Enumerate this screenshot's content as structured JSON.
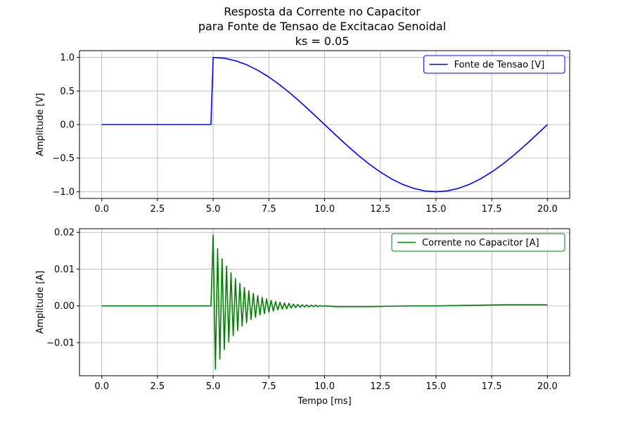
{
  "figure": {
    "title_lines": [
      "Resposta da Corrente no Capacitor",
      "para Fonte de Tensao de Excitacao Senoidal",
      "ks = 0.05"
    ]
  },
  "chart_data": [
    {
      "type": "line",
      "title": "",
      "xlabel": "",
      "ylabel": "Amplitude [V]",
      "xlim": [
        -1.0,
        21.0
      ],
      "ylim": [
        -1.1,
        1.1
      ],
      "xticks": [
        0.0,
        2.5,
        5.0,
        7.5,
        10.0,
        12.5,
        15.0,
        17.5,
        20.0
      ],
      "xtick_labels": [
        "0.0",
        "2.5",
        "5.0",
        "7.5",
        "10.0",
        "12.5",
        "15.0",
        "17.5",
        "20.0"
      ],
      "yticks": [
        -1.0,
        -0.5,
        0.0,
        0.5,
        1.0
      ],
      "ytick_labels": [
        "−1.0",
        "−0.5",
        "0.0",
        "0.5",
        "1.0"
      ],
      "grid": true,
      "legend_position": "top-right",
      "series": [
        {
          "name": "Fonte de Tensao [V]",
          "color": "#0000ff",
          "x": [
            0.0,
            4.9,
            5.0,
            5.5,
            6.0,
            6.5,
            7.0,
            7.5,
            8.0,
            8.5,
            9.0,
            9.5,
            10.0,
            10.5,
            11.0,
            11.5,
            12.0,
            12.5,
            13.0,
            13.5,
            14.0,
            14.5,
            15.0,
            15.5,
            16.0,
            16.5,
            17.0,
            17.5,
            18.0,
            18.5,
            19.0,
            19.5,
            20.0
          ],
          "y": [
            0.0,
            0.0,
            1.0,
            0.988,
            0.951,
            0.891,
            0.809,
            0.707,
            0.588,
            0.454,
            0.309,
            0.156,
            0.0,
            -0.156,
            -0.309,
            -0.454,
            -0.588,
            -0.707,
            -0.809,
            -0.891,
            -0.951,
            -0.988,
            -1.0,
            -0.988,
            -0.951,
            -0.891,
            -0.809,
            -0.707,
            -0.588,
            -0.454,
            -0.309,
            -0.156,
            0.0
          ]
        }
      ]
    },
    {
      "type": "line",
      "title": "",
      "xlabel": "Tempo [ms]",
      "ylabel": "Amplitude [A]",
      "xlim": [
        -1.0,
        21.0
      ],
      "ylim": [
        -0.019,
        0.021
      ],
      "xticks": [
        0.0,
        2.5,
        5.0,
        7.5,
        10.0,
        12.5,
        15.0,
        17.5,
        20.0
      ],
      "xtick_labels": [
        "0.0",
        "2.5",
        "5.0",
        "7.5",
        "10.0",
        "12.5",
        "15.0",
        "17.5",
        "20.0"
      ],
      "yticks": [
        -0.01,
        0.0,
        0.01,
        0.02
      ],
      "ytick_labels": [
        "−0.01",
        "0.00",
        "0.01",
        "0.02"
      ],
      "grid": true,
      "legend_position": "top-right",
      "series": [
        {
          "name": "Corrente no Capacitor [A]",
          "color": "#008000",
          "x": [
            0.0,
            4.9,
            5.0,
            5.1,
            5.2,
            5.3,
            5.4,
            5.5,
            5.6,
            5.7,
            5.8,
            5.9,
            6.0,
            6.1,
            6.2,
            6.3,
            6.4,
            6.5,
            6.6,
            6.7,
            6.8,
            6.9,
            7.0,
            7.1,
            7.2,
            7.3,
            7.4,
            7.5,
            7.6,
            7.7,
            7.8,
            7.9,
            8.0,
            8.1,
            8.2,
            8.3,
            8.4,
            8.5,
            8.6,
            8.7,
            8.8,
            8.9,
            9.0,
            9.1,
            9.2,
            9.3,
            9.4,
            9.5,
            9.6,
            9.7,
            9.8,
            9.9,
            10.0,
            10.5,
            11.0,
            12.0,
            13.0,
            14.0,
            15.0,
            16.0,
            17.0,
            18.0,
            19.0,
            20.0
          ],
          "y": [
            0.0,
            0.0,
            0.0193,
            -0.0172,
            0.0156,
            -0.0145,
            0.0128,
            -0.0119,
            0.0108,
            -0.0098,
            0.009,
            -0.0081,
            0.0074,
            -0.0067,
            0.0061,
            -0.0055,
            0.005,
            -0.0046,
            0.0041,
            -0.0037,
            0.0034,
            -0.0031,
            0.0028,
            -0.0025,
            0.0023,
            -0.0021,
            0.0019,
            -0.0017,
            0.0015,
            -0.0014,
            0.0012,
            -0.0011,
            0.001,
            -0.0009,
            0.0008,
            -0.0008,
            0.0007,
            -0.0006,
            0.0005,
            -0.0005,
            0.0004,
            -0.0004,
            0.0003,
            -0.0003,
            0.0003,
            -0.0003,
            0.0002,
            -0.0002,
            0.0002,
            -0.0002,
            0.0001,
            -0.0001,
            0.0,
            -0.0002,
            -0.0002,
            -0.0002,
            -0.0001,
            0.0,
            0.0,
            0.0001,
            0.0002,
            0.0003,
            0.0003,
            0.0003
          ]
        }
      ]
    }
  ]
}
